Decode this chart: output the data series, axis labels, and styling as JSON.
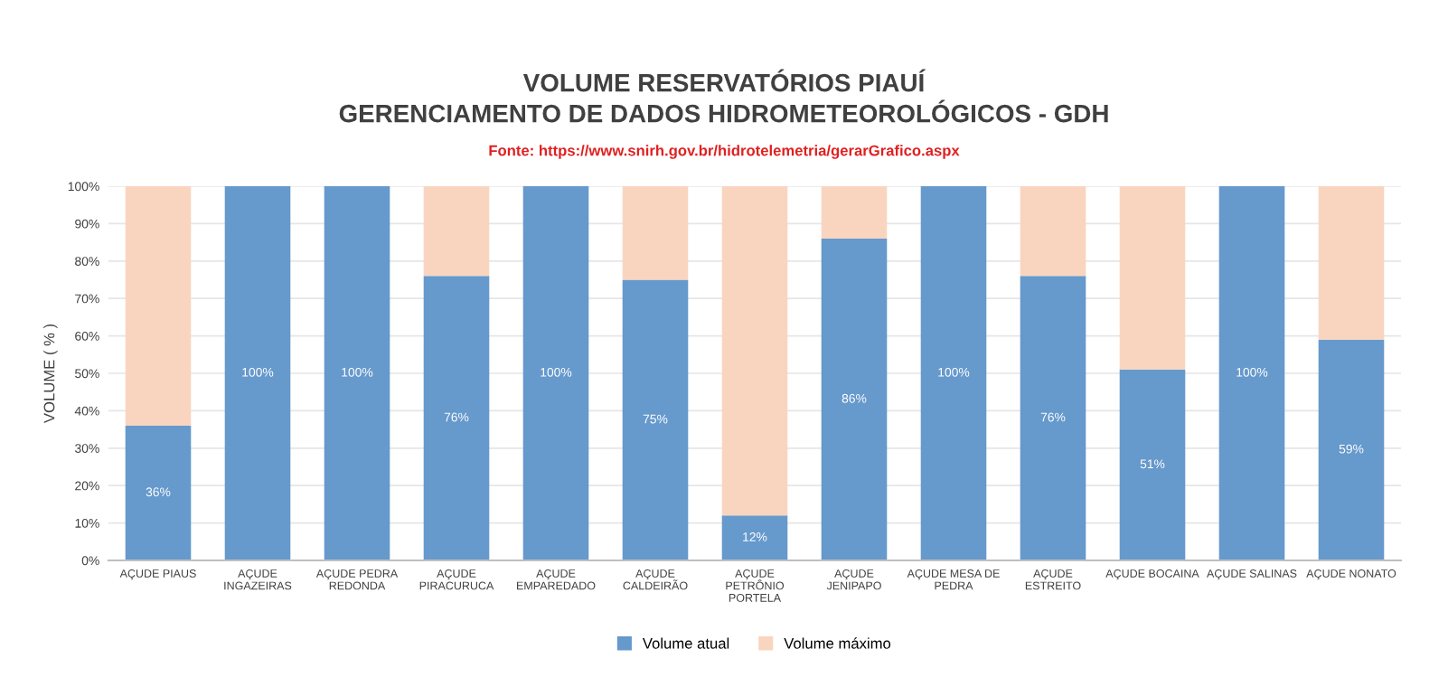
{
  "chart_data": {
    "type": "bar",
    "title": "VOLUME RESERVATÓRIOS PIAUÍ",
    "subtitle": "GERENCIAMENTO DE DADOS HIDROMETEOROLÓGICOS - GDH",
    "annotations": [
      "Fonte: https://www.snirh.gov.br/hidrotelemetria/gerarGrafico.aspx"
    ],
    "ylabel": "VOLUME ( % )",
    "categories": [
      "AÇUDE PIAUS",
      "AÇUDE INGAZEIRAS",
      "AÇUDE PEDRA REDONDA",
      "AÇUDE PIRACURUCA",
      "AÇUDE EMPAREDADO",
      "AÇUDE CALDEIRÃO",
      "AÇUDE PETRÔNIO PORTELA",
      "AÇUDE JENIPAPO",
      "AÇUDE MESA DE PEDRA",
      "AÇUDE ESTREITO",
      "AÇUDE BOCAINA",
      "AÇUDE SALINAS",
      "AÇUDE NONATO"
    ],
    "stacked": true,
    "series": [
      {
        "name": "Volume atual",
        "color": "#6699cc",
        "values": [
          36,
          100,
          100,
          76,
          100,
          75,
          12,
          86,
          100,
          76,
          51,
          100,
          59
        ],
        "value_labels": [
          "36%",
          "100%",
          "100%",
          "76%",
          "100%",
          "75%",
          "12%",
          "86%",
          "100%",
          "76%",
          "51%",
          "100%",
          "59%"
        ]
      },
      {
        "name": "Volume máximo",
        "color": "#f9d5bf",
        "values": [
          64,
          0,
          0,
          24,
          0,
          25,
          88,
          14,
          0,
          24,
          49,
          0,
          41
        ]
      }
    ],
    "ylim": [
      0,
      100
    ],
    "yticks": [
      {
        "value": 0,
        "label": "0%"
      },
      {
        "value": 10,
        "label": "10%"
      },
      {
        "value": 20,
        "label": "20%"
      },
      {
        "value": 30,
        "label": "30%"
      },
      {
        "value": 40,
        "label": "40%"
      },
      {
        "value": 50,
        "label": "50%"
      },
      {
        "value": 60,
        "label": "60%"
      },
      {
        "value": 70,
        "label": "70%"
      },
      {
        "value": 80,
        "label": "80%"
      },
      {
        "value": 90,
        "label": "90%"
      },
      {
        "value": 100,
        "label": "100%"
      }
    ],
    "grid": "y",
    "legend": "bottom"
  }
}
